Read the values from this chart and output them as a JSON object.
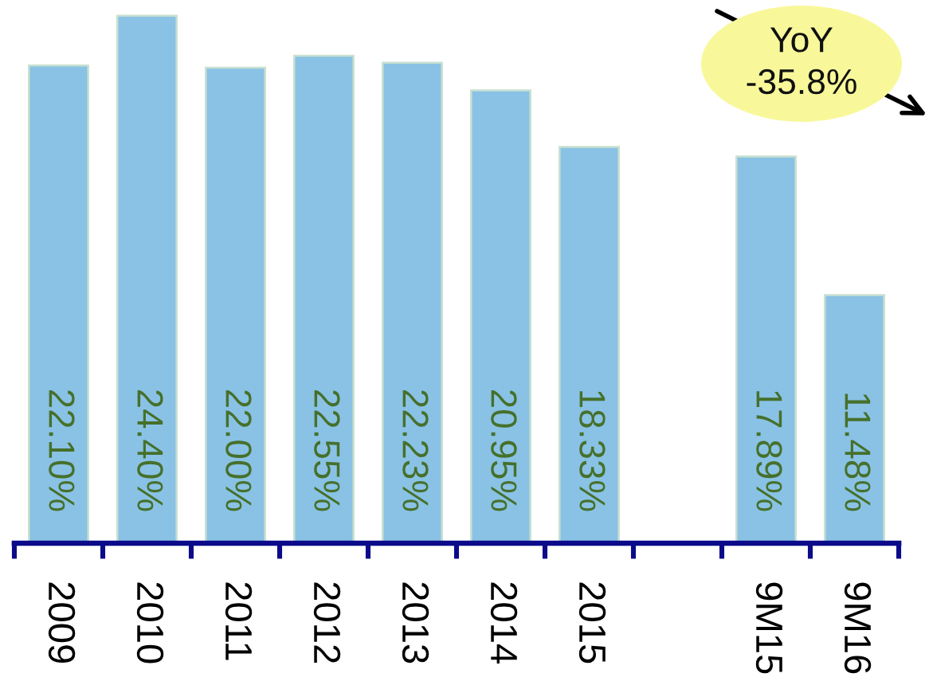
{
  "chart_data": {
    "type": "bar",
    "categories": [
      "2009",
      "2010",
      "2011",
      "2012",
      "2013",
      "2014",
      "2015",
      null,
      "9M15",
      "9M16"
    ],
    "values": [
      22.1,
      24.4,
      22.0,
      22.55,
      22.23,
      20.95,
      18.33,
      null,
      17.89,
      11.48
    ],
    "value_labels": [
      "22.10%",
      "24.40%",
      "22.00%",
      "22.55%",
      "22.23%",
      "20.95%",
      "18.33%",
      null,
      "17.89%",
      "11.48%"
    ],
    "color": "#89c2e4",
    "annotations": [
      "YoY\n-35.8%"
    ],
    "tick_labels": "x"
  }
}
